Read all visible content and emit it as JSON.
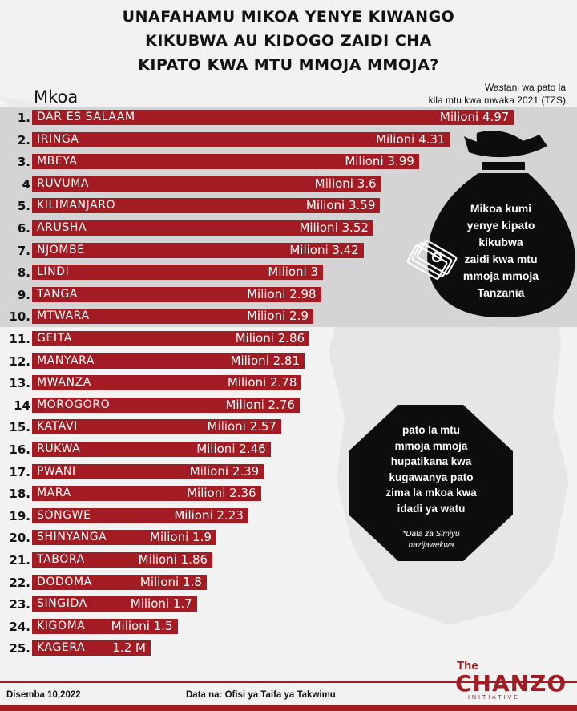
{
  "header": {
    "title_lines": [
      "UNAFAHAMU MIKOA YENYE KIWANGO",
      "KIKUBWA AU KIDOGO ZAIDI CHA",
      "KIPATO KWA MTU MMOJA MMOJA?"
    ],
    "column_label": "Mkoa",
    "value_header_lines": [
      "Wastani  wa pato  la",
      "kila mtu kwa mwaka 2021 (TZS)"
    ]
  },
  "chart_data": {
    "type": "bar",
    "orientation": "horizontal",
    "categories": [
      "DAR ES SALAAM",
      "IRINGA",
      "MBEYA",
      "RUVUMA",
      "KILIMANJARO",
      "ARUSHA",
      "NJOMBE",
      "LINDI",
      "TANGA",
      "MTWARA",
      "GEITA",
      "MANYARA",
      "MWANZA",
      "MOROGORO",
      "KATAVI",
      "RUKWA",
      "PWANI",
      "MARA",
      "SONGWE",
      "SHINYANGA",
      "TABORA",
      "DODOMA",
      "SINGIDA",
      "KIGOMA",
      "KAGERA"
    ],
    "ranks": [
      "1.",
      "2.",
      "3.",
      "4",
      "5.",
      "6.",
      "7.",
      "8.",
      "9.",
      "10.",
      "11.",
      "12.",
      "13.",
      "14",
      "15.",
      "16.",
      "17.",
      "18.",
      "19.",
      "20.",
      "21.",
      "22.",
      "23.",
      "24.",
      "25."
    ],
    "values": [
      4.97,
      4.31,
      3.99,
      3.6,
      3.59,
      3.52,
      3.42,
      3,
      2.98,
      2.9,
      2.86,
      2.81,
      2.78,
      2.76,
      2.57,
      2.46,
      2.39,
      2.36,
      2.23,
      1.9,
      1.86,
      1.8,
      1.7,
      1.5,
      1.2
    ],
    "value_labels": [
      "Milioni 4.97",
      "Milioni 4.31",
      "Milioni 3.99",
      "Milioni 3.6",
      "Milioni 3.59",
      "Milioni 3.52",
      "Milioni 3.42",
      "Milioni 3",
      "Milioni 2.98",
      "Milioni 2.9",
      "Milioni 2.86",
      "Milioni 2.81",
      "Milioni 2.78",
      "Milioni 2.76",
      "Milioni 2.57",
      "Milioni 2.46",
      "Milioni 2.39",
      "Milioni 2.36",
      "Milioni 2.23",
      "Milioni 1.9",
      "Milioni 1.86",
      "Milioni 1.8",
      "Milioni 1.7",
      "Milioni 1.5",
      "1.2 M"
    ],
    "xlim": [
      0,
      5
    ],
    "bar_color": "#a31c23",
    "highlight_top": 10
  },
  "callout_top10": {
    "lines": [
      "Mikoa kumi",
      "yenye kipato",
      "kikubwa",
      "zaidi kwa mtu",
      "mmoja mmoja",
      "Tanzania"
    ]
  },
  "callout_note": {
    "lines": [
      "pato la mtu",
      "mmoja mmoja",
      "hupatikana kwa",
      "kugawanya pato",
      "zima la mkoa kwa",
      "idadi ya watu"
    ],
    "footnote_lines": [
      "*Data za Simiyu",
      "hazijawekwa"
    ]
  },
  "footer": {
    "date": "Disemba 10,2022",
    "source": "Data na: Ofisi ya Taifa ya Takwimu",
    "logo_the": "The",
    "logo_name": "CHANZO",
    "logo_sub": "INITIATIVE"
  },
  "colors": {
    "accent": "#a31c23",
    "band": "#d4d4d4",
    "callout": "#0d0d0d",
    "background": "#f2f2f2"
  }
}
